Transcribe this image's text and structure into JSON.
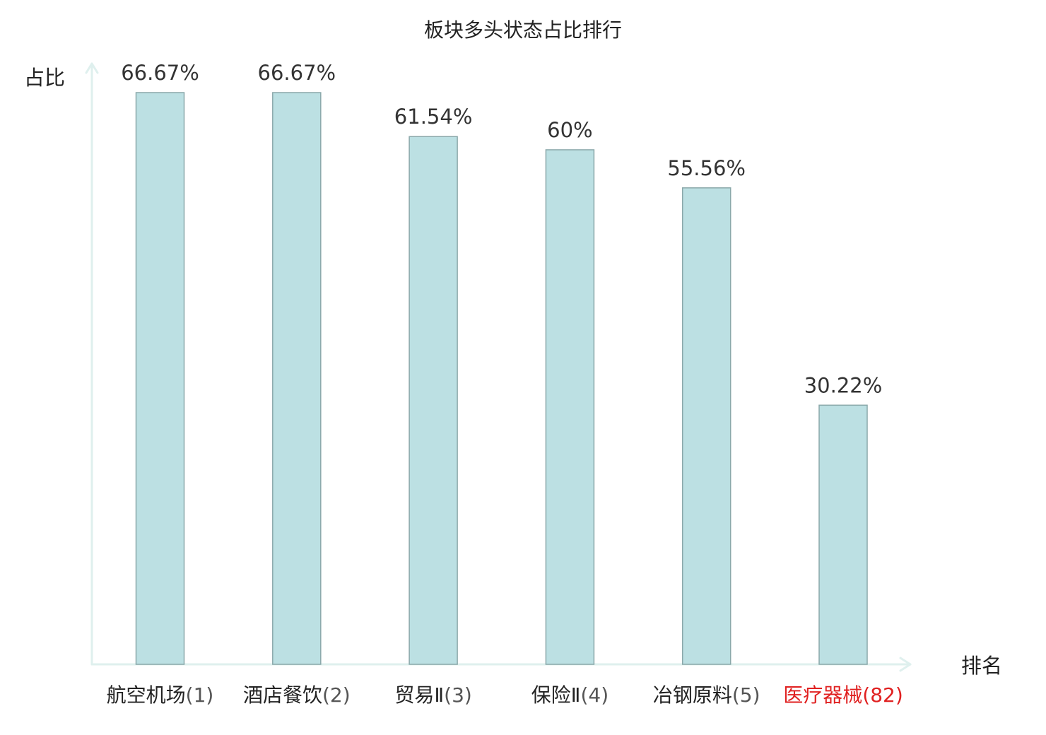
{
  "chart_data": {
    "type": "bar",
    "title": "板块多头状态占比排行",
    "xlabel": "排名",
    "ylabel": "占比",
    "ylim": [
      0,
      70
    ],
    "grid": false,
    "categories": [
      {
        "name": "航空机场",
        "rank": "(1)"
      },
      {
        "name": "酒店餐饮",
        "rank": "(2)"
      },
      {
        "name": "贸易Ⅱ",
        "rank": "(3)"
      },
      {
        "name": "保险Ⅱ",
        "rank": "(4)"
      },
      {
        "name": "冶钢原料",
        "rank": "(5)"
      },
      {
        "name": "医疗器械",
        "rank": "(82)",
        "highlight": true
      }
    ],
    "values": [
      66.67,
      66.67,
      61.54,
      60,
      55.56,
      30.22
    ],
    "value_labels": [
      "66.67%",
      "66.67%",
      "61.54%",
      "60%",
      "55.56%",
      "30.22%"
    ]
  },
  "colors": {
    "bar_fill": "#bce0e3",
    "bar_stroke": "#8aa8aa",
    "axis": "#dff0ee",
    "highlight": "#e02020"
  }
}
